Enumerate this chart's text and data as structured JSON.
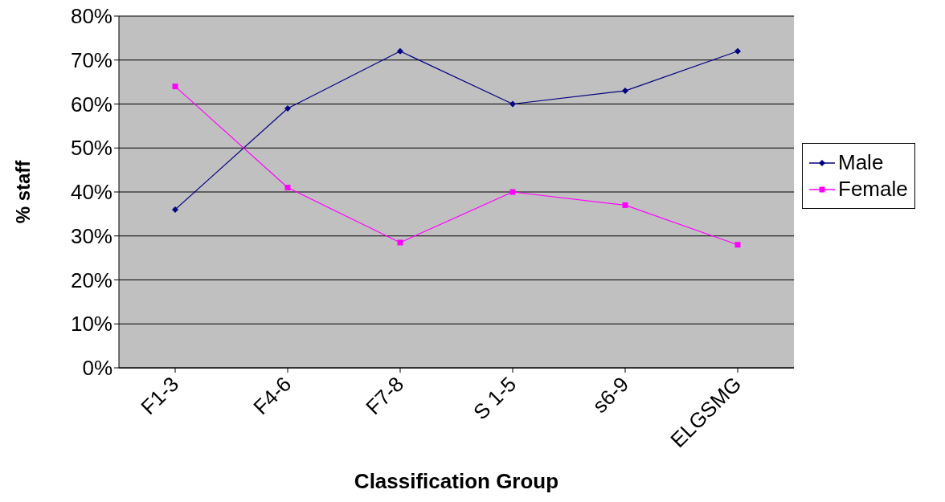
{
  "chart_data": {
    "type": "line",
    "xlabel": "Classification Group",
    "ylabel": "% staff",
    "categories": [
      "F1-3",
      "F4-6",
      "F7-8",
      "S 1-5",
      "s6-9",
      "ELGSMG"
    ],
    "series": [
      {
        "name": "Male",
        "color": "#000080",
        "marker": "diamond",
        "values": [
          36,
          59,
          72,
          60,
          63,
          72
        ]
      },
      {
        "name": "Female",
        "color": "#ff00ff",
        "marker": "square",
        "values": [
          64,
          41,
          28.5,
          40,
          37,
          28
        ]
      }
    ],
    "ylim": [
      0,
      80
    ],
    "yticks": [
      {
        "value": 0,
        "label": "0%"
      },
      {
        "value": 10,
        "label": "10%"
      },
      {
        "value": 20,
        "label": "20%"
      },
      {
        "value": 30,
        "label": "30%"
      },
      {
        "value": 40,
        "label": "40%"
      },
      {
        "value": 50,
        "label": "50%"
      },
      {
        "value": 60,
        "label": "60%"
      },
      {
        "value": 70,
        "label": "70%"
      },
      {
        "value": 80,
        "label": "80%"
      }
    ],
    "grid": "y",
    "legend": "right",
    "line_style": "solid"
  }
}
